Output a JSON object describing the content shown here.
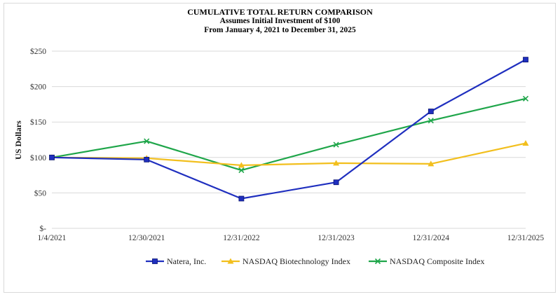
{
  "chart_data": {
    "type": "line",
    "title": "CUMULATIVE TOTAL RETURN COMPARISON",
    "subtitle1": "Assumes Initial Investment of $100",
    "subtitle2": "From January 4, 2021 to December 31, 2025",
    "xlabel": "",
    "ylabel": "US Dollars",
    "categories": [
      "1/4/2021",
      "12/30/2021",
      "12/31/2022",
      "12/31/2023",
      "12/31/2024",
      "12/31/2025"
    ],
    "ylim": [
      0,
      250
    ],
    "yticks": [
      0,
      50,
      100,
      150,
      200,
      250
    ],
    "ytick_labels": [
      "$-",
      "$50",
      "$100",
      "$150",
      "$200",
      "$250"
    ],
    "grid": true,
    "legend_position": "bottom",
    "series": [
      {
        "name": "Natera, Inc.",
        "color": "#1f2fbf",
        "marker": "square",
        "values": [
          100,
          97,
          42,
          65,
          165,
          238
        ]
      },
      {
        "name": "NASDAQ Biotechnology Index",
        "color": "#f2bf1d",
        "marker": "triangle",
        "values": [
          100,
          99,
          89,
          92,
          91,
          120
        ]
      },
      {
        "name": "NASDAQ Composite Index",
        "color": "#1fa64a",
        "marker": "x",
        "values": [
          100,
          123,
          82,
          118,
          152,
          183
        ]
      }
    ]
  }
}
